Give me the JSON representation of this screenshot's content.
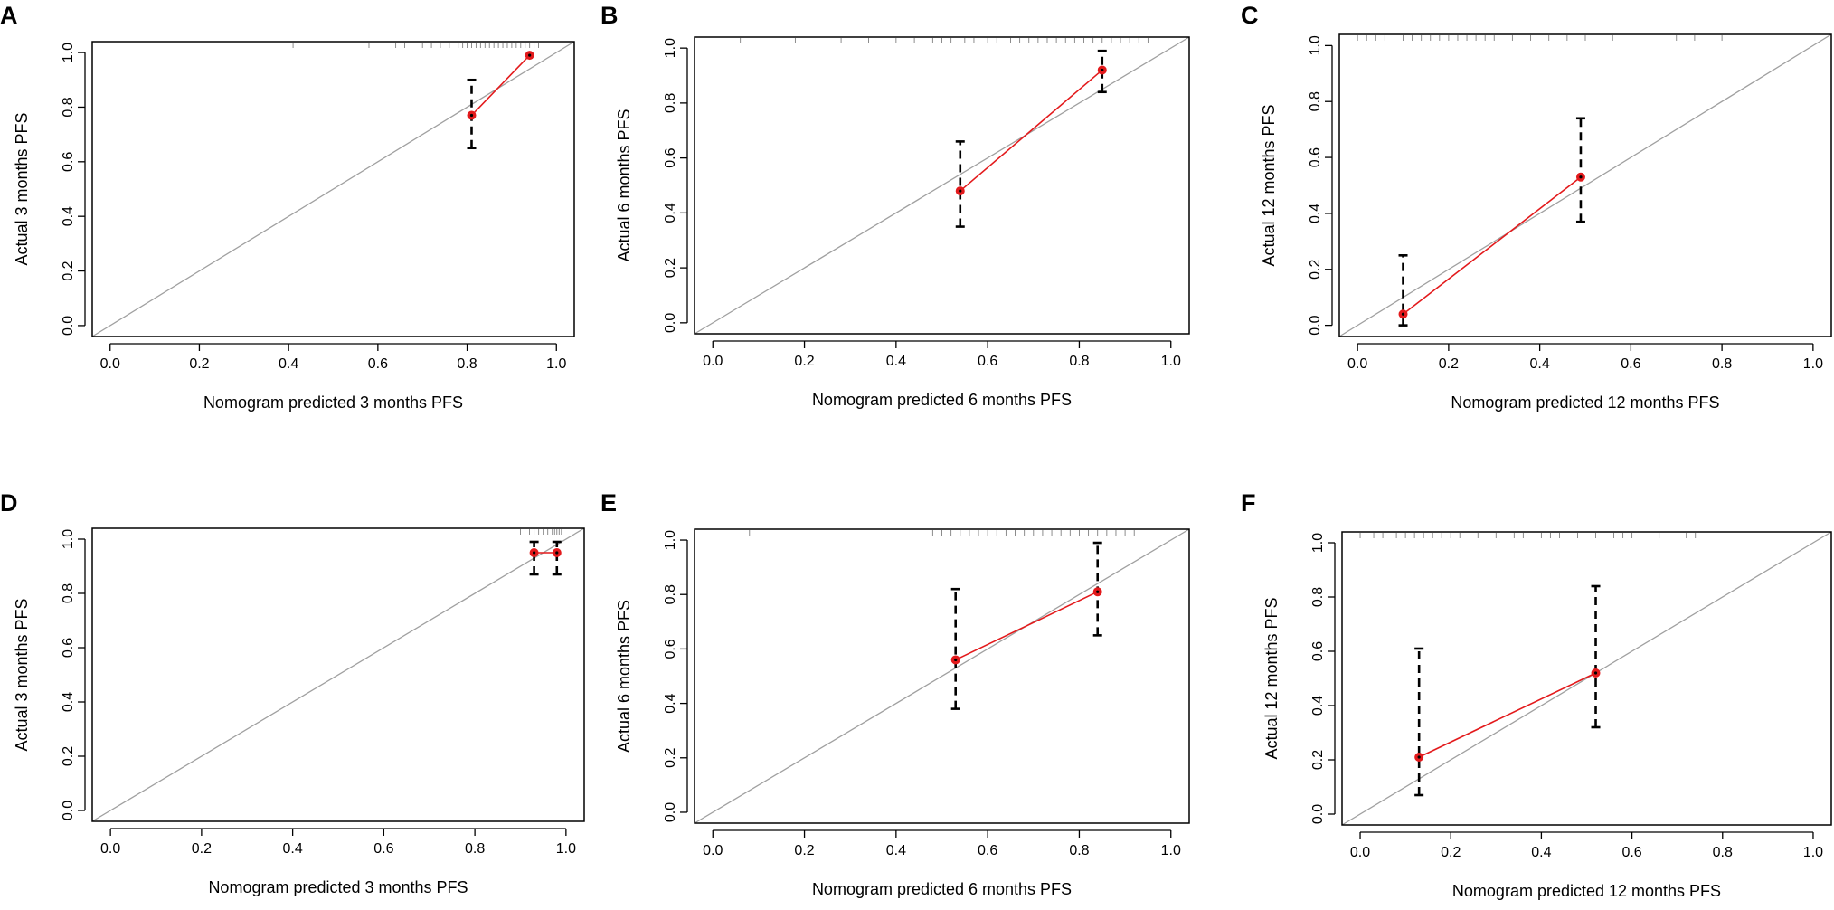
{
  "figure": {
    "panel_count": 6
  },
  "chart_data": [
    {
      "panel": "A",
      "type": "scatter",
      "xlabel": "Nomogram predicted 3 months PFS",
      "ylabel": "Actual 3 months PFS",
      "xlim": [
        0.0,
        1.0
      ],
      "ylim": [
        0.0,
        1.0
      ],
      "xticks": [
        "0.0",
        "0.2",
        "0.4",
        "0.6",
        "0.8",
        "1.0"
      ],
      "yticks": [
        "0.0",
        "0.2",
        "0.4",
        "0.6",
        "0.8",
        "1.0"
      ],
      "reference_line": "diagonal",
      "points": [
        {
          "x": 0.81,
          "y": 0.77,
          "lower": 0.65,
          "upper": 0.9
        },
        {
          "x": 0.94,
          "y": 0.99,
          "lower": 0.99,
          "upper": 0.99
        }
      ],
      "rug": [
        0.41,
        0.58,
        0.64,
        0.66,
        0.7,
        0.72,
        0.74,
        0.76,
        0.78,
        0.79,
        0.8,
        0.81,
        0.82,
        0.83,
        0.84,
        0.85,
        0.86,
        0.87,
        0.88,
        0.89,
        0.9,
        0.91,
        0.92,
        0.93,
        0.94,
        0.95,
        0.96
      ]
    },
    {
      "panel": "B",
      "type": "scatter",
      "xlabel": "Nomogram predicted 6 months PFS",
      "ylabel": "Actual 6 months PFS",
      "xlim": [
        0.0,
        1.0
      ],
      "ylim": [
        0.0,
        1.0
      ],
      "xticks": [
        "0.0",
        "0.2",
        "0.4",
        "0.6",
        "0.8",
        "1.0"
      ],
      "yticks": [
        "0.0",
        "0.2",
        "0.4",
        "0.6",
        "0.8",
        "1.0"
      ],
      "reference_line": "diagonal",
      "points": [
        {
          "x": 0.54,
          "y": 0.48,
          "lower": 0.35,
          "upper": 0.66
        },
        {
          "x": 0.85,
          "y": 0.92,
          "lower": 0.84,
          "upper": 0.99
        }
      ],
      "rug": [
        0.06,
        0.18,
        0.28,
        0.34,
        0.4,
        0.44,
        0.48,
        0.5,
        0.52,
        0.55,
        0.57,
        0.6,
        0.62,
        0.65,
        0.67,
        0.69,
        0.71,
        0.73,
        0.75,
        0.77,
        0.79,
        0.81,
        0.83,
        0.85,
        0.87,
        0.89,
        0.91,
        0.93,
        0.95
      ]
    },
    {
      "panel": "C",
      "type": "scatter",
      "xlabel": "Nomogram predicted 12 months PFS",
      "ylabel": "Actual 12 months PFS",
      "xlim": [
        0.0,
        1.0
      ],
      "ylim": [
        0.0,
        1.0
      ],
      "xticks": [
        "0.0",
        "0.2",
        "0.4",
        "0.6",
        "0.8",
        "1.0"
      ],
      "yticks": [
        "0.0",
        "0.2",
        "0.4",
        "0.6",
        "0.8",
        "1.0"
      ],
      "reference_line": "diagonal",
      "points": [
        {
          "x": 0.1,
          "y": 0.04,
          "lower": 0.0,
          "upper": 0.25
        },
        {
          "x": 0.49,
          "y": 0.53,
          "lower": 0.37,
          "upper": 0.74
        }
      ],
      "rug": [
        0.0,
        0.02,
        0.04,
        0.06,
        0.08,
        0.1,
        0.12,
        0.14,
        0.16,
        0.18,
        0.2,
        0.22,
        0.24,
        0.26,
        0.28,
        0.3,
        0.34,
        0.38,
        0.42,
        0.46,
        0.5,
        0.56,
        0.62,
        0.7,
        0.74,
        0.8
      ]
    },
    {
      "panel": "D",
      "type": "scatter",
      "xlabel": "Nomogram predicted 3 months PFS",
      "ylabel": "Actual 3 months PFS",
      "xlim": [
        0.0,
        1.0
      ],
      "ylim": [
        0.0,
        1.0
      ],
      "xticks": [
        "0.0",
        "0.2",
        "0.4",
        "0.6",
        "0.8",
        "1.0"
      ],
      "yticks": [
        "0.0",
        "0.2",
        "0.4",
        "0.6",
        "0.8",
        "1.0"
      ],
      "reference_line": "diagonal",
      "points": [
        {
          "x": 0.93,
          "y": 0.95,
          "lower": 0.87,
          "upper": 0.99
        },
        {
          "x": 0.98,
          "y": 0.95,
          "lower": 0.87,
          "upper": 0.99
        }
      ],
      "rug": [
        0.9,
        0.91,
        0.92,
        0.93,
        0.94,
        0.95,
        0.96,
        0.97,
        0.975,
        0.98,
        0.985,
        0.99
      ]
    },
    {
      "panel": "E",
      "type": "scatter",
      "xlabel": "Nomogram predicted 6 months PFS",
      "ylabel": "Actual 6 months PFS",
      "xlim": [
        0.0,
        1.0
      ],
      "ylim": [
        0.0,
        1.0
      ],
      "xticks": [
        "0.0",
        "0.2",
        "0.4",
        "0.6",
        "0.8",
        "1.0"
      ],
      "yticks": [
        "0.0",
        "0.2",
        "0.4",
        "0.6",
        "0.8",
        "1.0"
      ],
      "reference_line": "diagonal",
      "points": [
        {
          "x": 0.53,
          "y": 0.56,
          "lower": 0.38,
          "upper": 0.82
        },
        {
          "x": 0.84,
          "y": 0.81,
          "lower": 0.65,
          "upper": 0.99
        }
      ],
      "rug": [
        0.08,
        0.48,
        0.5,
        0.52,
        0.54,
        0.56,
        0.58,
        0.6,
        0.62,
        0.64,
        0.66,
        0.68,
        0.7,
        0.72,
        0.74,
        0.76,
        0.78,
        0.8,
        0.82,
        0.84,
        0.86,
        0.88,
        0.9,
        0.92
      ]
    },
    {
      "panel": "F",
      "type": "scatter",
      "xlabel": "Nomogram predicted 12 months PFS",
      "ylabel": "Actual 12 months PFS",
      "xlim": [
        0.0,
        1.0
      ],
      "ylim": [
        0.0,
        1.0
      ],
      "xticks": [
        "0.0",
        "0.2",
        "0.4",
        "0.6",
        "0.8",
        "1.0"
      ],
      "yticks": [
        "0.0",
        "0.2",
        "0.4",
        "0.6",
        "0.8",
        "1.0"
      ],
      "reference_line": "diagonal",
      "points": [
        {
          "x": 0.13,
          "y": 0.21,
          "lower": 0.07,
          "upper": 0.61
        },
        {
          "x": 0.52,
          "y": 0.52,
          "lower": 0.32,
          "upper": 0.84
        }
      ],
      "rug": [
        0.0,
        0.03,
        0.05,
        0.08,
        0.1,
        0.12,
        0.14,
        0.16,
        0.18,
        0.2,
        0.22,
        0.26,
        0.3,
        0.34,
        0.36,
        0.4,
        0.42,
        0.44,
        0.48,
        0.52,
        0.56,
        0.58,
        0.6,
        0.66,
        0.72,
        0.74
      ]
    }
  ],
  "colors": {
    "point": "#e31a1c",
    "line": "#e31a1c",
    "diagonal": "#a0a0a0",
    "errorbar": "#000000",
    "rug": "#808080",
    "frame": "#000000"
  }
}
